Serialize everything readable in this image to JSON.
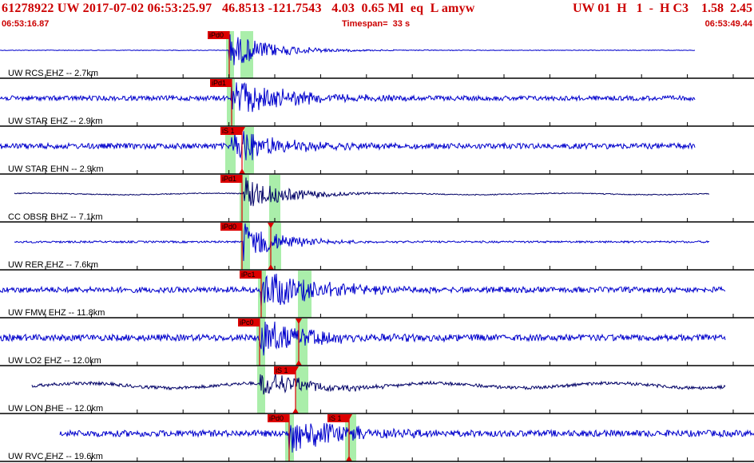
{
  "header": {
    "event_line": "61278922 UW 2017-07-02 06:53:25.97   46.8513 -121.7543   4.03  0.65 Ml  eq  L amyw",
    "right_line": "UW 01  H   1  -  H C3    1.58  2.45",
    "start_time": "06:53:16.87",
    "timespan": "Timespan=  33 s",
    "end_time": "06:53:49.44"
  },
  "colors": {
    "header_text": "#cc0000",
    "trace_blue": "#0000cc",
    "trace_navy": "#000066",
    "pick_box": "#dd0000",
    "window_green": "#aaeeaa",
    "separator": "#000000"
  },
  "traces": [
    {
      "label": "UW RCS EHZ -- 2.7km",
      "color": "blue",
      "x0": 0,
      "x1": 870,
      "onset": 287,
      "decay": 55,
      "amp": 22,
      "noise": 0.4,
      "picks": [
        {
          "text": "iPd0",
          "x": 287,
          "marker": false
        }
      ],
      "greens": [
        [
          283,
          293
        ],
        [
          301,
          317
        ]
      ]
    },
    {
      "label": "UW STAR EHZ -- 2.9km",
      "color": "blue",
      "x0": 0,
      "x1": 870,
      "onset": 290,
      "decay": 70,
      "amp": 24,
      "noise": 3,
      "picks": [
        {
          "text": "iPd1",
          "x": 290,
          "marker": false
        }
      ],
      "greens": [
        [
          284,
          294
        ]
      ]
    },
    {
      "label": "UW STAR EHN -- 2.9km",
      "color": "blue",
      "x0": 0,
      "x1": 870,
      "onset": 290,
      "decay": 55,
      "amp": 24,
      "noise": 3.5,
      "picks": [
        {
          "text": "iS 1",
          "x": 303,
          "marker": true
        }
      ],
      "greens": [
        [
          282,
          295
        ],
        [
          305,
          318
        ]
      ]
    },
    {
      "label": "CC OBSR BHZ -- 7.1km",
      "color": "navy",
      "x0": 18,
      "x1": 888,
      "onset": 305,
      "decay": 55,
      "amp": 21,
      "noise": 0.6,
      "picks": [
        {
          "text": "iPd1",
          "x": 303,
          "marker": false
        }
      ],
      "greens": [
        [
          300,
          312
        ],
        [
          337,
          351
        ]
      ]
    },
    {
      "label": "UW RER EHZ -- 7.6km",
      "color": "blue",
      "x0": 18,
      "x1": 888,
      "onset": 305,
      "decay": 45,
      "amp": 26,
      "noise": 1.2,
      "picks": [
        {
          "text": "iPd0",
          "x": 303,
          "marker": false
        },
        {
          "text": "",
          "x": 339,
          "marker": true
        }
      ],
      "greens": [
        [
          301,
          313
        ],
        [
          336,
          352
        ]
      ]
    },
    {
      "label": "UW FMW EHZ -- 11.8km",
      "color": "blue",
      "x0": 0,
      "x1": 908,
      "onset": 327,
      "decay": 70,
      "amp": 26,
      "noise": 3.5,
      "picks": [
        {
          "text": "iPc1",
          "x": 327,
          "marker": false
        }
      ],
      "greens": [
        [
          323,
          333
        ],
        [
          373,
          390
        ]
      ]
    },
    {
      "label": "UW LO2 EHZ -- 12.0km",
      "color": "blue",
      "x0": 0,
      "x1": 908,
      "onset": 326,
      "decay": 70,
      "amp": 22,
      "noise": 4,
      "picks": [
        {
          "text": "iPc0",
          "x": 325,
          "marker": false
        },
        {
          "text": "",
          "x": 374,
          "marker": true
        }
      ],
      "greens": [
        [
          321,
          332
        ],
        [
          370,
          385
        ]
      ]
    },
    {
      "label": "UW LON BHE -- 12.0km",
      "color": "navy",
      "x0": 40,
      "x1": 908,
      "onset": 326,
      "decay": 60,
      "amp": 18,
      "noise": 2,
      "picks": [
        {
          "text": "iS 1",
          "x": 370,
          "marker": true
        }
      ],
      "greens": [
        [
          322,
          332
        ],
        [
          370,
          386
        ]
      ]
    },
    {
      "label": "UW RVC EHZ -- 19.6km",
      "color": "blue",
      "x0": 75,
      "x1": 944,
      "onset": 362,
      "decay": 60,
      "amp": 26,
      "noise": 4,
      "picks": [
        {
          "text": "iPd0",
          "x": 362,
          "marker": false
        },
        {
          "text": "iS 1",
          "x": 437,
          "marker": true
        }
      ],
      "greens": [
        [
          357,
          368
        ],
        [
          432,
          446
        ]
      ]
    }
  ]
}
